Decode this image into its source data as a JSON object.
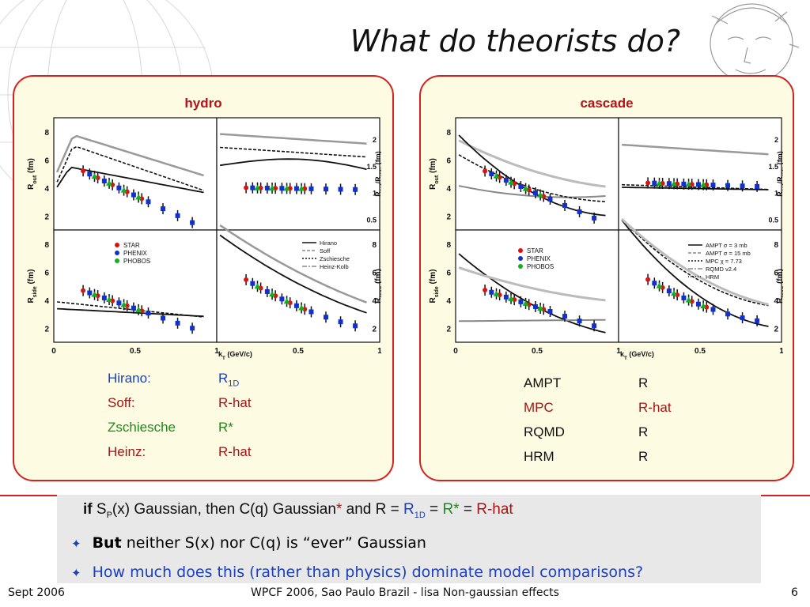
{
  "title": "What do theorists do?",
  "hydro": {
    "title": "hydro",
    "legend": [
      {
        "name": "Hirano:",
        "value": "R",
        "value_sub": "1D",
        "color": "#1a3fbf"
      },
      {
        "name": "Soff:",
        "value": "R-hat",
        "value_sub": "",
        "color": "#a51416"
      },
      {
        "name": "Zschiesche",
        "value": "R*",
        "value_sub": "",
        "color": "#1c8a1c"
      },
      {
        "name": "Heinz:",
        "value": "R-hat",
        "value_sub": "",
        "color": "#a51416"
      }
    ]
  },
  "cascade": {
    "title": "cascade",
    "legend": [
      {
        "name": "AMPT",
        "value": "R",
        "color": "#111111"
      },
      {
        "name": "MPC",
        "value": "R-hat",
        "color": "#a51416"
      },
      {
        "name": "RQMD",
        "value": "R",
        "color": "#111111"
      },
      {
        "name": "HRM",
        "value": "R",
        "color": "#111111"
      }
    ]
  },
  "statement": {
    "if": "if",
    "s": "S",
    "s_sub": "P",
    "mid": "(x) Gaussian, then C(q) Gaussian",
    "star": "*",
    "and": " and R = ",
    "r1d": "R",
    "r1d_sub": "1D",
    "eq1": " = ",
    "rstar": "R*",
    "eq2": " = ",
    "rhat": "R-hat"
  },
  "bullets": [
    {
      "bold": "But",
      "text": " neither S(x) nor C(q) is “ever” Gaussian",
      "color": "#111111"
    },
    {
      "bold": "",
      "text": "How much does this (rather than physics) dominate model comparisons?",
      "color": "#1a3fbf"
    }
  ],
  "footer": {
    "left": "Sept 2006",
    "center": "WPCF 2006, Sao Paulo Brazil - lisa Non-gaussian effects",
    "right": "6"
  },
  "plot_text": {
    "y_out": "R",
    "y_out_sub": "out",
    "y_side": "R",
    "y_side_sub": "side",
    "y_ratio": "R",
    "y_ratio_sub1": "out",
    "y_ratio_mid": "/R",
    "y_ratio_sub2": "side",
    "y_long": "R",
    "y_long_sub": "long",
    "fm": "(fm)",
    "x_label": "k",
    "x_label_sub": "T",
    "x_label_unit": " (GeV/c)",
    "x_ticks": [
      "0",
      "0.5",
      "1"
    ],
    "y_ticks_fm": [
      "2",
      "4",
      "6",
      "8"
    ],
    "y_ticks_ratio": [
      "0.5",
      "1",
      "1.5",
      "2"
    ],
    "data_legend": [
      "STAR",
      "PHENIX",
      "PHOBOS"
    ],
    "hydro_models": [
      "Hirano",
      "Soff",
      "Zschiesche",
      "Heinz-Kolb"
    ],
    "cascade_models": [
      "AMPT σ = 3 mb",
      "AMPT σ = 15 mb",
      "MPC χ = 7.73",
      "RQMD v2.4",
      "HRM"
    ]
  }
}
